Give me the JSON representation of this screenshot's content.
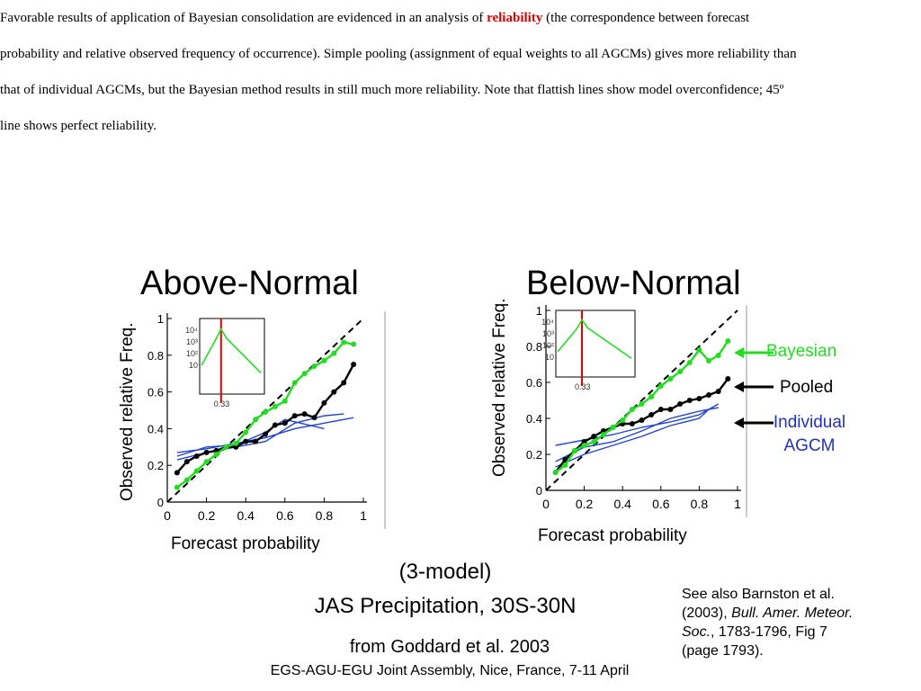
{
  "intro": {
    "before": "Favorable results of application of Bayesian consolidation are evidenced in an analysis of ",
    "highlight": "reliability",
    "after": " (the correspondence between forecast probability and relative observed frequency of occurrence). Simple pooling (assignment of equal weights to all AGCMs) gives more reliability than that of individual AGCMs, but the Bayesian method results in still much more reliability. Note that flattish lines show model overconfidence; 45º line shows perfect reliability."
  },
  "legend": {
    "bayesian": "Bayesian",
    "pooled": "Pooled",
    "individual_line1": "Individual",
    "individual_line2": "AGCM"
  },
  "colors": {
    "bayesian": "#22dd22",
    "pooled": "#000000",
    "individual": "#2244cc",
    "highlight": "#e00000",
    "inset_line": "#e00000"
  },
  "caption": {
    "line1": "(3-model)",
    "line2": "JAS Precipitation, 30S-30N",
    "line3": "from Goddard et al. 2003",
    "line4": "EGS-AGU-EGU Joint Assembly, Nice, France, 7-11 April"
  },
  "reference": {
    "line1": "See also Barnston et al.",
    "line2_pre": "(2003), ",
    "line2_it": "Bull. Amer. Meteor.",
    "line3_it": "Soc.",
    "line3_post": ", 1783-1796, Fig 7",
    "line4": "(page 1793)."
  },
  "chart_data": [
    {
      "type": "line",
      "title": "Above-Normal",
      "xlabel": "Forecast probability",
      "ylabel": "Observed relative Freq.",
      "xlim": [
        0,
        1
      ],
      "ylim": [
        0,
        1
      ],
      "xticks": [
        "0",
        "0.2",
        "0.4",
        "0.6",
        "0.8",
        "1"
      ],
      "yticks": [
        "0",
        "0.2",
        "0.4",
        "0.6",
        "0.8",
        "1"
      ],
      "series": [
        {
          "name": "Bayesian",
          "x": [
            0.05,
            0.1,
            0.15,
            0.2,
            0.25,
            0.3,
            0.35,
            0.4,
            0.45,
            0.5,
            0.55,
            0.6,
            0.65,
            0.7,
            0.75,
            0.8,
            0.85,
            0.9,
            0.95
          ],
          "y": [
            0.08,
            0.12,
            0.17,
            0.22,
            0.26,
            0.3,
            0.32,
            0.38,
            0.45,
            0.49,
            0.52,
            0.55,
            0.65,
            0.7,
            0.74,
            0.77,
            0.81,
            0.87,
            0.86
          ]
        },
        {
          "name": "Pooled",
          "x": [
            0.05,
            0.1,
            0.15,
            0.2,
            0.25,
            0.3,
            0.35,
            0.4,
            0.45,
            0.5,
            0.55,
            0.6,
            0.65,
            0.7,
            0.75,
            0.8,
            0.85,
            0.9,
            0.95
          ],
          "y": [
            0.16,
            0.22,
            0.25,
            0.27,
            0.28,
            0.3,
            0.3,
            0.33,
            0.33,
            0.37,
            0.42,
            0.43,
            0.47,
            0.48,
            0.46,
            0.54,
            0.6,
            0.65,
            0.75
          ]
        },
        {
          "name": "Individual AGCM",
          "x": [
            0.05,
            0.2,
            0.35,
            0.5,
            0.65,
            0.8,
            0.95
          ],
          "y": [
            0.27,
            0.29,
            0.32,
            0.35,
            0.4,
            0.43,
            0.46
          ]
        },
        {
          "name": "Individual AGCM",
          "x": [
            0.05,
            0.2,
            0.35,
            0.5,
            0.65,
            0.8,
            0.9
          ],
          "y": [
            0.23,
            0.27,
            0.3,
            0.33,
            0.43,
            0.47,
            0.48
          ]
        },
        {
          "name": "Individual AGCM",
          "x": [
            0.05,
            0.2,
            0.35,
            0.5,
            0.6,
            0.8
          ],
          "y": [
            0.25,
            0.3,
            0.31,
            0.38,
            0.45,
            0.4
          ]
        }
      ],
      "reference_line": "45-degree dashed"
    },
    {
      "type": "line",
      "title": "Below-Normal",
      "xlabel": "Forecast probability",
      "ylabel": "Observed relative Freq.",
      "xlim": [
        0,
        1
      ],
      "ylim": [
        0,
        1
      ],
      "xticks": [
        "0",
        "0.2",
        "0.4",
        "0.6",
        "0.8",
        "1"
      ],
      "yticks": [
        "0",
        "0.2",
        "0.4",
        "0.6",
        "0.8",
        "1"
      ],
      "series": [
        {
          "name": "Bayesian",
          "x": [
            0.05,
            0.1,
            0.15,
            0.2,
            0.25,
            0.3,
            0.35,
            0.4,
            0.45,
            0.5,
            0.55,
            0.6,
            0.65,
            0.7,
            0.75,
            0.8,
            0.85,
            0.9,
            0.95
          ],
          "y": [
            0.1,
            0.14,
            0.22,
            0.25,
            0.27,
            0.31,
            0.35,
            0.39,
            0.45,
            0.48,
            0.52,
            0.58,
            0.62,
            0.66,
            0.71,
            0.78,
            0.72,
            0.75,
            0.83
          ]
        },
        {
          "name": "Pooled",
          "x": [
            0.05,
            0.1,
            0.15,
            0.2,
            0.25,
            0.3,
            0.35,
            0.4,
            0.45,
            0.5,
            0.55,
            0.6,
            0.65,
            0.7,
            0.75,
            0.8,
            0.85,
            0.9,
            0.95
          ],
          "y": [
            0.1,
            0.17,
            0.22,
            0.27,
            0.3,
            0.33,
            0.35,
            0.37,
            0.37,
            0.39,
            0.42,
            0.45,
            0.45,
            0.48,
            0.5,
            0.51,
            0.53,
            0.55,
            0.62
          ]
        },
        {
          "name": "Individual AGCM",
          "x": [
            0.05,
            0.2,
            0.35,
            0.5,
            0.65,
            0.8,
            0.9
          ],
          "y": [
            0.25,
            0.28,
            0.31,
            0.35,
            0.38,
            0.42,
            0.48
          ]
        },
        {
          "name": "Individual AGCM",
          "x": [
            0.05,
            0.2,
            0.35,
            0.5,
            0.65,
            0.8,
            0.85
          ],
          "y": [
            0.13,
            0.2,
            0.25,
            0.3,
            0.36,
            0.4,
            0.45
          ]
        },
        {
          "name": "Individual AGCM",
          "x": [
            0.05,
            0.2,
            0.35,
            0.5,
            0.65,
            0.8,
            0.9
          ],
          "y": [
            0.16,
            0.24,
            0.27,
            0.33,
            0.4,
            0.44,
            0.46
          ]
        }
      ],
      "reference_line": "45-degree dashed"
    }
  ],
  "insets": [
    {
      "yticks": [
        "10⁴",
        "10³",
        "10²",
        "10"
      ],
      "xlabel": "0.33"
    },
    {
      "yticks": [
        "10⁴",
        "10³",
        "10²",
        "10"
      ],
      "xlabel": "0.33"
    }
  ]
}
